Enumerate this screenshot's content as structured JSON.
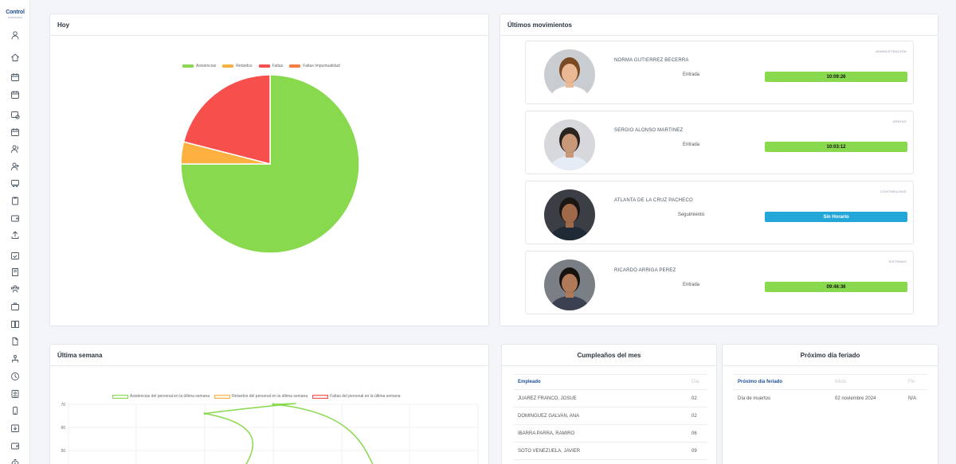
{
  "app": {
    "logo_text": "Control",
    "logo_sub": "ASISTENCIA"
  },
  "sidebar": {
    "icons": [
      "user-icon",
      "home-icon",
      "calendar-icon",
      "calendar-icon",
      "calendar-clock-icon",
      "calendar-icon",
      "users-icon",
      "user-plus-icon",
      "bus-icon",
      "clipboard-icon",
      "wallet-icon",
      "upload-icon",
      "calendar-check-icon",
      "building-icon",
      "team-icon",
      "briefcase-icon",
      "book-icon",
      "document-icon",
      "org-chart-icon",
      "clock-icon",
      "id-card-icon",
      "phone-icon",
      "download-icon",
      "wallet-icon",
      "timer-icon"
    ]
  },
  "hoy": {
    "title": "Hoy",
    "legend": [
      {
        "label": "Asistencias",
        "color": "#89d94f"
      },
      {
        "label": "Retardos",
        "color": "#fbb040"
      },
      {
        "label": "Faltas",
        "color": "#f7504c"
      },
      {
        "label": "Faltas Impuntualidad",
        "color": "#f97e43"
      }
    ]
  },
  "chart_data": [
    {
      "type": "pie",
      "title": "",
      "labels": [
        "Asistencias",
        "Retardos",
        "Faltas",
        "Faltas Impuntualidad"
      ],
      "values": [
        75,
        4,
        21,
        0
      ],
      "colors": [
        "#89d94f",
        "#fbb040",
        "#f7504c",
        "#f97e43"
      ]
    },
    {
      "type": "line",
      "title": "",
      "series": [
        {
          "name": "Asistencias del personal en la última semana",
          "color": "#89d94f"
        },
        {
          "name": "Retardos del personal en la última semana",
          "color": "#fbb040"
        },
        {
          "name": "Faltas del personal en la última semana",
          "color": "#f7504c"
        }
      ],
      "y_ticks": [
        "70",
        "60",
        "50"
      ],
      "ylim": [
        40,
        70
      ],
      "visible_points": [
        {
          "series": "Asistencias del personal en la última semana",
          "x_index": 2,
          "y": 66
        },
        {
          "series": "Asistencias del personal en la última semana",
          "x_index": 3,
          "y": 70
        }
      ],
      "grid": true,
      "legend_position": "top"
    }
  ],
  "movimientos": {
    "title": "Últimos movimientos",
    "items": [
      {
        "dept": "ADMINISTRACIÓN",
        "name": "NORMA GUTIERREZ BECERRA",
        "type": "Entrada",
        "value": "10:09:26",
        "color": "#89d94f"
      },
      {
        "dept": "VENTAS",
        "name": "SERGIO ALONSO MARTINEZ",
        "type": "Entrada",
        "value": "10:03:12",
        "color": "#89d94f"
      },
      {
        "dept": "CONTABILIDAD",
        "name": "ATLANTA DE LA CRUZ PACHECO",
        "type": "Seguimiento",
        "value": "Sin Horario",
        "color": "#22a7d8"
      },
      {
        "dept": "SISTEMAS",
        "name": "RICARDO ARRIGA PEREZ",
        "type": "Entrada",
        "value": "09:46:36",
        "color": "#89d94f"
      }
    ]
  },
  "semana": {
    "title": "Última semana"
  },
  "cumple": {
    "title": "Cumpleaños del mes",
    "headers": [
      "Empleado",
      "Día"
    ],
    "rows": [
      {
        "name": "JUAREZ FRANCO, JOSUE",
        "day": "02"
      },
      {
        "name": "DOMINGUEZ GALVAN, ANA",
        "day": "02"
      },
      {
        "name": "IBARRA PARRA, RAMIRO",
        "day": "06"
      },
      {
        "name": "SOTO VENEZUELA, JAVIER",
        "day": "09"
      }
    ]
  },
  "feriado": {
    "title": "Próximo día feriado",
    "headers": [
      "Próximo día feriado",
      "Inicio",
      "Fin"
    ],
    "rows": [
      {
        "name": "Día de muertos",
        "start": "02 noviembre 2024",
        "end": "N/A"
      }
    ]
  }
}
